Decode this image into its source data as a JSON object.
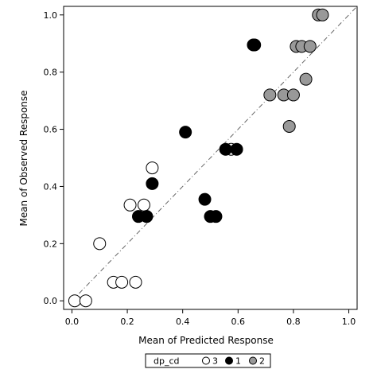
{
  "chart_data": {
    "type": "scatter",
    "xlabel": "Mean of Predicted Response",
    "ylabel": "Mean of Observed Response",
    "xlim": [
      -0.03,
      1.03
    ],
    "ylim": [
      -0.03,
      1.03
    ],
    "x_ticks": [
      "0.0",
      "0.2",
      "0.4",
      "0.6",
      "0.8",
      "1.0"
    ],
    "y_ticks": [
      "0.0",
      "0.2",
      "0.4",
      "0.6",
      "0.8",
      "1.0"
    ],
    "reference_line": "y = x (dash-dot)",
    "grid": false,
    "legend": {
      "title": "dp_cd",
      "placement": "bottom-center",
      "entries": [
        "3",
        "1",
        "2"
      ]
    },
    "series": [
      {
        "name": "3",
        "fill": "#ffffff",
        "points": [
          [
            0.01,
            0.0
          ],
          [
            0.05,
            0.0
          ],
          [
            0.1,
            0.2
          ],
          [
            0.15,
            0.065
          ],
          [
            0.18,
            0.065
          ],
          [
            0.23,
            0.065
          ],
          [
            0.21,
            0.335
          ],
          [
            0.26,
            0.335
          ],
          [
            0.29,
            0.465
          ],
          [
            0.575,
            0.53
          ]
        ]
      },
      {
        "name": "1",
        "fill": "#000000",
        "points": [
          [
            0.24,
            0.295
          ],
          [
            0.27,
            0.295
          ],
          [
            0.29,
            0.41
          ],
          [
            0.41,
            0.59
          ],
          [
            0.48,
            0.355
          ],
          [
            0.5,
            0.295
          ],
          [
            0.52,
            0.295
          ],
          [
            0.555,
            0.53
          ],
          [
            0.595,
            0.53
          ],
          [
            0.655,
            0.895
          ],
          [
            0.66,
            0.895
          ]
        ]
      },
      {
        "name": "2",
        "fill": "#999999",
        "points": [
          [
            0.715,
            0.72
          ],
          [
            0.765,
            0.72
          ],
          [
            0.8,
            0.72
          ],
          [
            0.785,
            0.61
          ],
          [
            0.845,
            0.775
          ],
          [
            0.81,
            0.89
          ],
          [
            0.83,
            0.89
          ],
          [
            0.86,
            0.89
          ],
          [
            0.89,
            1.0
          ],
          [
            0.905,
            1.0
          ]
        ]
      }
    ]
  }
}
